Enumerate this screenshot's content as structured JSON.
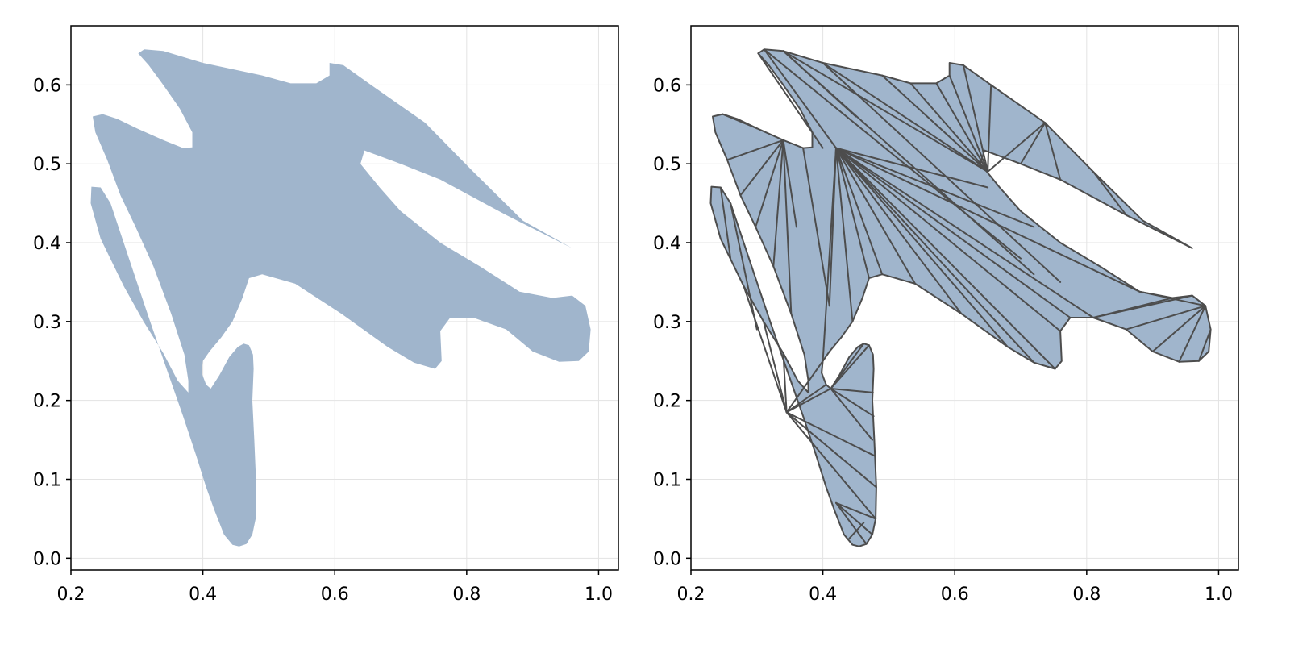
{
  "figure": {
    "background": "#ffffff",
    "fill_color": "#a0b5cc",
    "edge_color": "#4d4d4d",
    "grid_color": "#e3e3e3",
    "frame_color": "#000000"
  },
  "chart_data": [
    {
      "type": "area",
      "variant": "filled-polygon",
      "title": "",
      "xlabel": "",
      "ylabel": "",
      "xlim": [
        0.2,
        1.03
      ],
      "ylim": [
        -0.015,
        0.675
      ],
      "xticks": [
        "0.2",
        "0.4",
        "0.6",
        "0.8",
        "1.0"
      ],
      "yticks": [
        "0.0",
        "0.1",
        "0.2",
        "0.3",
        "0.4",
        "0.5",
        "0.6"
      ],
      "xtick_values": [
        0.2,
        0.4,
        0.6,
        0.8,
        1.0
      ],
      "ytick_values": [
        0.0,
        0.1,
        0.2,
        0.3,
        0.4,
        0.5,
        0.6
      ],
      "grid": true,
      "show_edges": false
    },
    {
      "type": "area",
      "variant": "triangulated-polygon",
      "title": "",
      "xlabel": "",
      "ylabel": "",
      "xlim": [
        0.2,
        1.03
      ],
      "ylim": [
        -0.015,
        0.675
      ],
      "xticks": [
        "0.2",
        "0.4",
        "0.6",
        "0.8",
        "1.0"
      ],
      "yticks": [
        "0.0",
        "0.1",
        "0.2",
        "0.3",
        "0.4",
        "0.5",
        "0.6"
      ],
      "xtick_values": [
        0.2,
        0.4,
        0.6,
        0.8,
        1.0
      ],
      "ytick_values": [
        0.0,
        0.1,
        0.2,
        0.3,
        0.4,
        0.5,
        0.6
      ],
      "grid": true,
      "show_edges": true
    }
  ],
  "polygon": {
    "points": [
      [
        0.302,
        0.64
      ],
      [
        0.311,
        0.645
      ],
      [
        0.34,
        0.643
      ],
      [
        0.4,
        0.628
      ],
      [
        0.49,
        0.612
      ],
      [
        0.533,
        0.602
      ],
      [
        0.572,
        0.602
      ],
      [
        0.592,
        0.612
      ],
      [
        0.592,
        0.628
      ],
      [
        0.613,
        0.625
      ],
      [
        0.655,
        0.6
      ],
      [
        0.737,
        0.552
      ],
      [
        0.81,
        0.49
      ],
      [
        0.885,
        0.428
      ],
      [
        0.96,
        0.393
      ],
      [
        0.86,
        0.435
      ],
      [
        0.76,
        0.48
      ],
      [
        0.7,
        0.5
      ],
      [
        0.645,
        0.517
      ],
      [
        0.639,
        0.5
      ],
      [
        0.668,
        0.47
      ],
      [
        0.7,
        0.44
      ],
      [
        0.76,
        0.4
      ],
      [
        0.82,
        0.37
      ],
      [
        0.88,
        0.338
      ],
      [
        0.93,
        0.33
      ],
      [
        0.96,
        0.333
      ],
      [
        0.98,
        0.32
      ],
      [
        0.988,
        0.29
      ],
      [
        0.985,
        0.262
      ],
      [
        0.97,
        0.25
      ],
      [
        0.94,
        0.249
      ],
      [
        0.9,
        0.262
      ],
      [
        0.86,
        0.29
      ],
      [
        0.81,
        0.305
      ],
      [
        0.775,
        0.305
      ],
      [
        0.76,
        0.288
      ],
      [
        0.762,
        0.25
      ],
      [
        0.752,
        0.24
      ],
      [
        0.72,
        0.248
      ],
      [
        0.68,
        0.268
      ],
      [
        0.61,
        0.31
      ],
      [
        0.54,
        0.348
      ],
      [
        0.49,
        0.36
      ],
      [
        0.47,
        0.355
      ],
      [
        0.46,
        0.33
      ],
      [
        0.445,
        0.3
      ],
      [
        0.428,
        0.28
      ],
      [
        0.41,
        0.262
      ],
      [
        0.4,
        0.25
      ],
      [
        0.398,
        0.235
      ],
      [
        0.405,
        0.22
      ],
      [
        0.412,
        0.215
      ],
      [
        0.425,
        0.232
      ],
      [
        0.44,
        0.255
      ],
      [
        0.453,
        0.268
      ],
      [
        0.462,
        0.272
      ],
      [
        0.47,
        0.27
      ],
      [
        0.476,
        0.258
      ],
      [
        0.477,
        0.24
      ],
      [
        0.475,
        0.2
      ],
      [
        0.478,
        0.15
      ],
      [
        0.481,
        0.09
      ],
      [
        0.48,
        0.05
      ],
      [
        0.475,
        0.03
      ],
      [
        0.466,
        0.018
      ],
      [
        0.455,
        0.015
      ],
      [
        0.445,
        0.017
      ],
      [
        0.432,
        0.03
      ],
      [
        0.418,
        0.06
      ],
      [
        0.405,
        0.09
      ],
      [
        0.39,
        0.13
      ],
      [
        0.37,
        0.18
      ],
      [
        0.345,
        0.24
      ],
      [
        0.32,
        0.3
      ],
      [
        0.29,
        0.375
      ],
      [
        0.26,
        0.45
      ],
      [
        0.245,
        0.47
      ],
      [
        0.231,
        0.471
      ],
      [
        0.23,
        0.45
      ],
      [
        0.245,
        0.405
      ],
      [
        0.28,
        0.345
      ],
      [
        0.31,
        0.3
      ],
      [
        0.34,
        0.26
      ],
      [
        0.362,
        0.225
      ],
      [
        0.378,
        0.21
      ],
      [
        0.378,
        0.225
      ],
      [
        0.372,
        0.258
      ],
      [
        0.352,
        0.31
      ],
      [
        0.325,
        0.37
      ],
      [
        0.298,
        0.42
      ],
      [
        0.275,
        0.46
      ],
      [
        0.255,
        0.505
      ],
      [
        0.237,
        0.54
      ],
      [
        0.233,
        0.56
      ],
      [
        0.248,
        0.563
      ],
      [
        0.27,
        0.557
      ],
      [
        0.3,
        0.545
      ],
      [
        0.34,
        0.53
      ],
      [
        0.37,
        0.52
      ],
      [
        0.384,
        0.521
      ],
      [
        0.384,
        0.54
      ],
      [
        0.365,
        0.57
      ],
      [
        0.34,
        0.6
      ],
      [
        0.318,
        0.625
      ]
    ]
  },
  "mesh": {
    "lines": [
      [
        0.302,
        0.64,
        0.4,
        0.52
      ],
      [
        0.311,
        0.645,
        0.42,
        0.52
      ],
      [
        0.34,
        0.643,
        0.45,
        0.56
      ],
      [
        0.34,
        0.643,
        0.65,
        0.49
      ],
      [
        0.4,
        0.628,
        0.65,
        0.49
      ],
      [
        0.49,
        0.612,
        0.65,
        0.49
      ],
      [
        0.533,
        0.602,
        0.65,
        0.49
      ],
      [
        0.572,
        0.602,
        0.65,
        0.49
      ],
      [
        0.592,
        0.612,
        0.65,
        0.49
      ],
      [
        0.613,
        0.625,
        0.65,
        0.49
      ],
      [
        0.655,
        0.6,
        0.65,
        0.49
      ],
      [
        0.737,
        0.552,
        0.65,
        0.49
      ],
      [
        0.737,
        0.552,
        0.76,
        0.48
      ],
      [
        0.737,
        0.552,
        0.7,
        0.5
      ],
      [
        0.81,
        0.49,
        0.86,
        0.435
      ],
      [
        0.311,
        0.645,
        0.7,
        0.38
      ],
      [
        0.34,
        0.643,
        0.72,
        0.36
      ],
      [
        0.4,
        0.628,
        0.76,
        0.35
      ],
      [
        0.42,
        0.52,
        0.65,
        0.47
      ],
      [
        0.42,
        0.52,
        0.72,
        0.42
      ],
      [
        0.42,
        0.52,
        0.88,
        0.338
      ],
      [
        0.42,
        0.52,
        0.81,
        0.305
      ],
      [
        0.42,
        0.52,
        0.775,
        0.305
      ],
      [
        0.42,
        0.52,
        0.76,
        0.288
      ],
      [
        0.42,
        0.52,
        0.752,
        0.24
      ],
      [
        0.42,
        0.52,
        0.72,
        0.248
      ],
      [
        0.42,
        0.52,
        0.68,
        0.268
      ],
      [
        0.42,
        0.52,
        0.61,
        0.31
      ],
      [
        0.42,
        0.52,
        0.54,
        0.348
      ],
      [
        0.42,
        0.52,
        0.49,
        0.36
      ],
      [
        0.42,
        0.52,
        0.47,
        0.355
      ],
      [
        0.42,
        0.52,
        0.445,
        0.3
      ],
      [
        0.42,
        0.52,
        0.41,
        0.32
      ],
      [
        0.42,
        0.52,
        0.4,
        0.25
      ],
      [
        0.37,
        0.52,
        0.41,
        0.32
      ],
      [
        0.34,
        0.53,
        0.352,
        0.31
      ],
      [
        0.34,
        0.53,
        0.36,
        0.42
      ],
      [
        0.34,
        0.53,
        0.325,
        0.37
      ],
      [
        0.34,
        0.53,
        0.298,
        0.42
      ],
      [
        0.34,
        0.53,
        0.275,
        0.46
      ],
      [
        0.34,
        0.53,
        0.255,
        0.505
      ],
      [
        0.3,
        0.545,
        0.248,
        0.563
      ],
      [
        0.86,
        0.29,
        0.98,
        0.32
      ],
      [
        0.9,
        0.262,
        0.98,
        0.32
      ],
      [
        0.94,
        0.249,
        0.98,
        0.32
      ],
      [
        0.88,
        0.338,
        0.98,
        0.32
      ],
      [
        0.81,
        0.305,
        0.96,
        0.333
      ],
      [
        0.81,
        0.305,
        0.93,
        0.33
      ],
      [
        0.97,
        0.25,
        0.988,
        0.29
      ],
      [
        0.245,
        0.47,
        0.26,
        0.38
      ],
      [
        0.26,
        0.45,
        0.3,
        0.29
      ],
      [
        0.28,
        0.345,
        0.345,
        0.185
      ],
      [
        0.31,
        0.3,
        0.345,
        0.185
      ],
      [
        0.34,
        0.26,
        0.345,
        0.185
      ],
      [
        0.345,
        0.185,
        0.4,
        0.25
      ],
      [
        0.345,
        0.185,
        0.405,
        0.22
      ],
      [
        0.345,
        0.185,
        0.412,
        0.215
      ],
      [
        0.345,
        0.185,
        0.478,
        0.13
      ],
      [
        0.345,
        0.185,
        0.481,
        0.09
      ],
      [
        0.345,
        0.185,
        0.48,
        0.05
      ],
      [
        0.412,
        0.215,
        0.476,
        0.21
      ],
      [
        0.412,
        0.215,
        0.477,
        0.18
      ],
      [
        0.412,
        0.215,
        0.475,
        0.15
      ],
      [
        0.412,
        0.215,
        0.47,
        0.27
      ],
      [
        0.412,
        0.215,
        0.462,
        0.272
      ],
      [
        0.42,
        0.07,
        0.48,
        0.05
      ],
      [
        0.42,
        0.07,
        0.475,
        0.03
      ],
      [
        0.42,
        0.07,
        0.466,
        0.018
      ],
      [
        0.44,
        0.025,
        0.462,
        0.045
      ]
    ]
  }
}
